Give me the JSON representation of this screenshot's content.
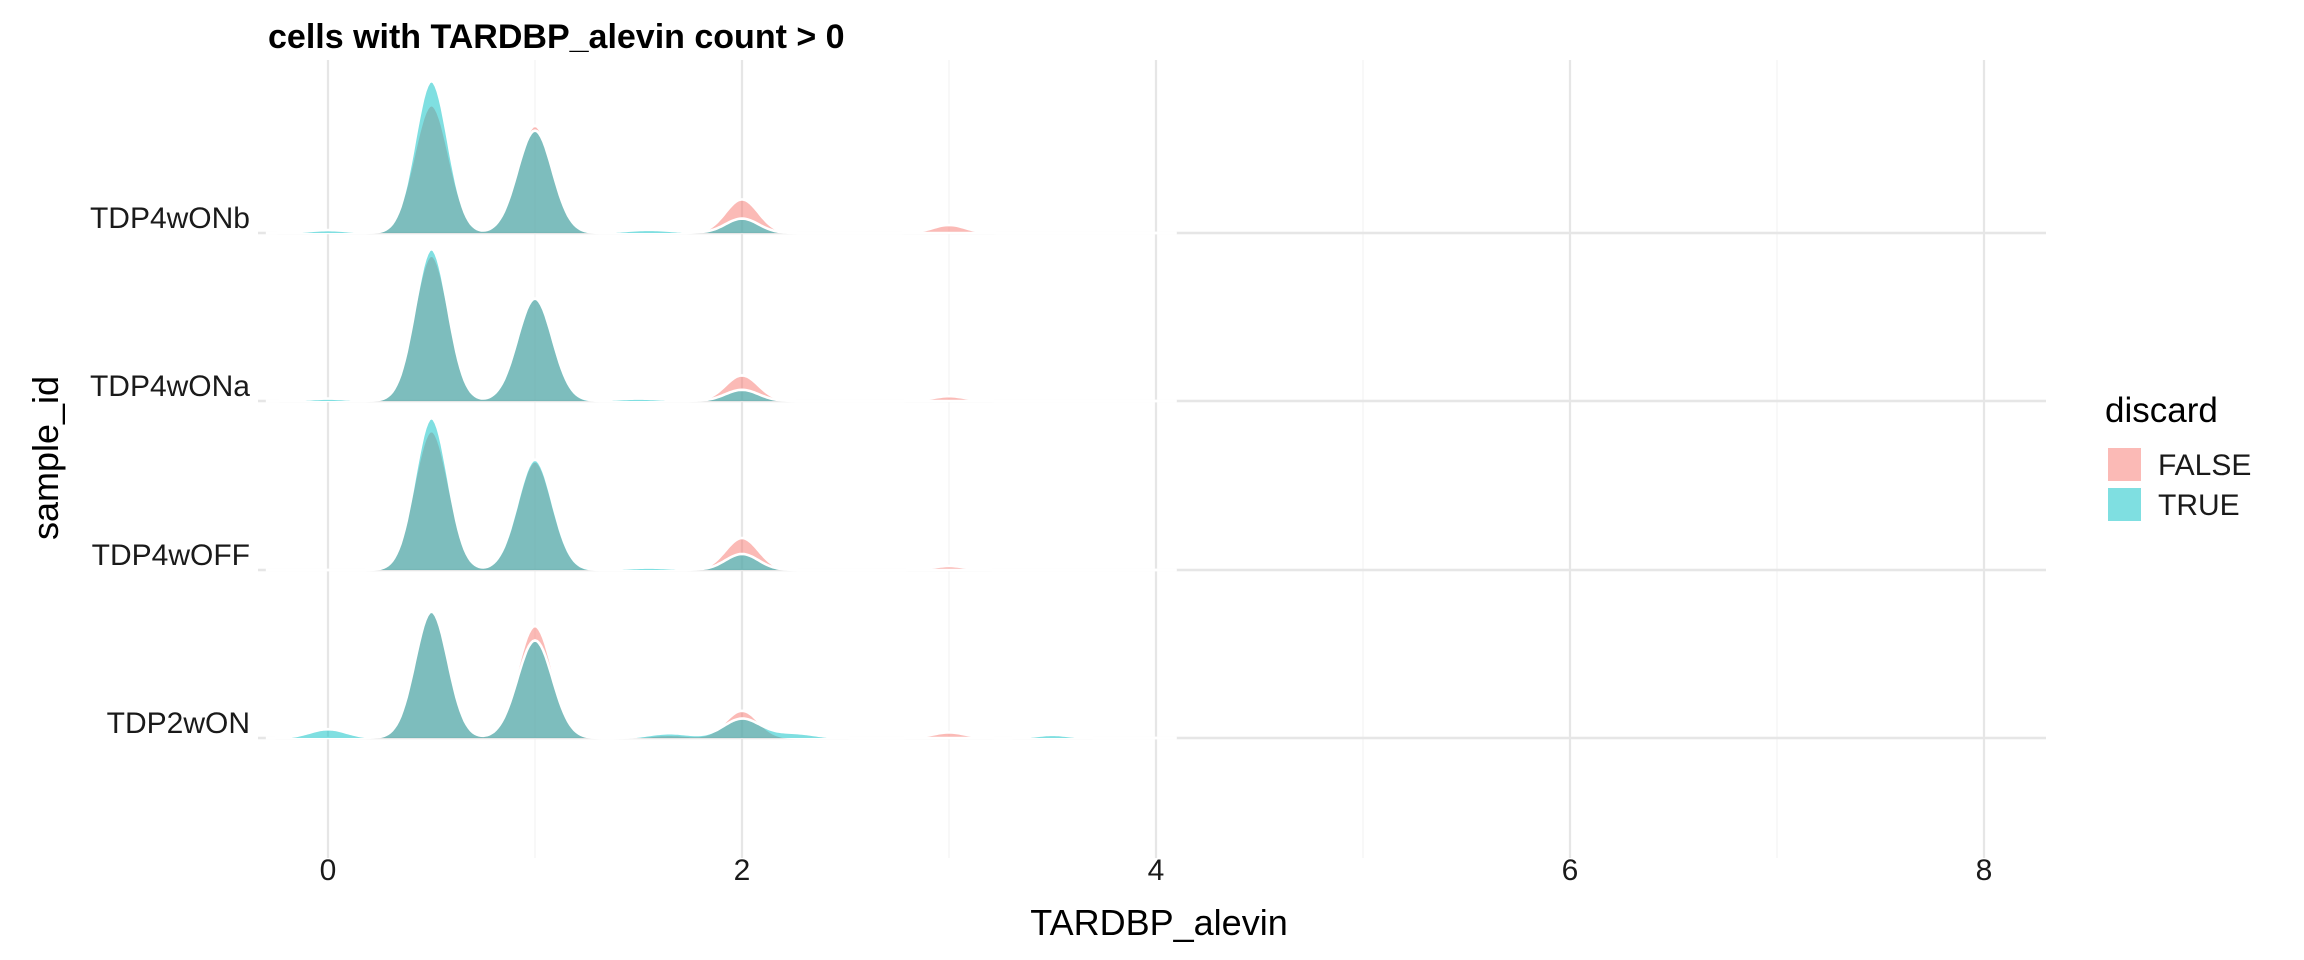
{
  "chart_data": {
    "type": "area",
    "title": "cells with TARDBP_alevin count > 0",
    "xlabel": "TARDBP_alevin",
    "ylabel": "sample_id",
    "xlim": [
      -0.35,
      8.3
    ],
    "x_ticks": [
      0,
      2,
      4,
      6,
      8
    ],
    "grid": true,
    "categories": [
      "TDP2wON",
      "TDP4wOFF",
      "TDP4wONa",
      "TDP4wONb"
    ],
    "legend": {
      "title": "discard",
      "position": "right",
      "entries": [
        {
          "name": "FALSE",
          "color": "#F8766D"
        },
        {
          "name": "TRUE",
          "color": "#00BFC4"
        }
      ]
    },
    "series": [
      {
        "name": "FALSE",
        "color": "#F8766D",
        "fill_opacity": 0.5,
        "rows": {
          "TDP4wONb": {
            "peaks": [
              [
                0.5,
                0.8,
                0.085
              ],
              [
                1.0,
                0.67,
                0.085
              ],
              [
                2.0,
                0.21,
                0.08
              ],
              [
                3.0,
                0.05,
                0.08
              ]
            ]
          },
          "TDP4wONa": {
            "peaks": [
              [
                0.5,
                0.91,
                0.085
              ],
              [
                1.0,
                0.64,
                0.085
              ],
              [
                2.0,
                0.16,
                0.08
              ],
              [
                3.0,
                0.03,
                0.08
              ]
            ]
          },
          "TDP4wOFF": {
            "peaks": [
              [
                0.5,
                0.87,
                0.085
              ],
              [
                1.0,
                0.68,
                0.085
              ],
              [
                2.0,
                0.2,
                0.08
              ],
              [
                3.0,
                0.025,
                0.08
              ]
            ]
          },
          "TDP2wON": {
            "peaks": [
              [
                0.5,
                0.79,
                0.085
              ],
              [
                1.0,
                0.7,
                0.085
              ],
              [
                2.0,
                0.17,
                0.08
              ],
              [
                3.0,
                0.035,
                0.08
              ],
              [
                1.65,
                0.02,
                0.1
              ]
            ]
          }
        }
      },
      {
        "name": "TRUE",
        "color": "#00BFC4",
        "fill_opacity": 0.5,
        "rows": {
          "TDP4wONb": {
            "peaks": [
              [
                0.5,
                0.95,
                0.08
              ],
              [
                1.0,
                0.64,
                0.085
              ],
              [
                2.0,
                0.09,
                0.08
              ],
              [
                0.0,
                0.018,
                0.1
              ],
              [
                1.55,
                0.02,
                0.12
              ]
            ]
          },
          "TDP4wONa": {
            "peaks": [
              [
                0.5,
                0.95,
                0.08
              ],
              [
                1.0,
                0.64,
                0.085
              ],
              [
                2.0,
                0.07,
                0.08
              ],
              [
                0.0,
                0.015,
                0.1
              ],
              [
                1.5,
                0.015,
                0.12
              ]
            ]
          },
          "TDP4wOFF": {
            "peaks": [
              [
                0.5,
                0.95,
                0.08
              ],
              [
                1.0,
                0.69,
                0.085
              ],
              [
                2.0,
                0.1,
                0.08
              ],
              [
                1.55,
                0.015,
                0.12
              ]
            ]
          },
          "TDP2wON": {
            "peaks": [
              [
                0.5,
                0.79,
                0.08
              ],
              [
                1.0,
                0.61,
                0.085
              ],
              [
                2.0,
                0.12,
                0.09
              ],
              [
                0.0,
                0.055,
                0.09
              ],
              [
                1.65,
                0.03,
                0.1
              ],
              [
                2.25,
                0.03,
                0.1
              ],
              [
                3.5,
                0.02,
                0.08
              ]
            ]
          }
        }
      }
    ]
  }
}
